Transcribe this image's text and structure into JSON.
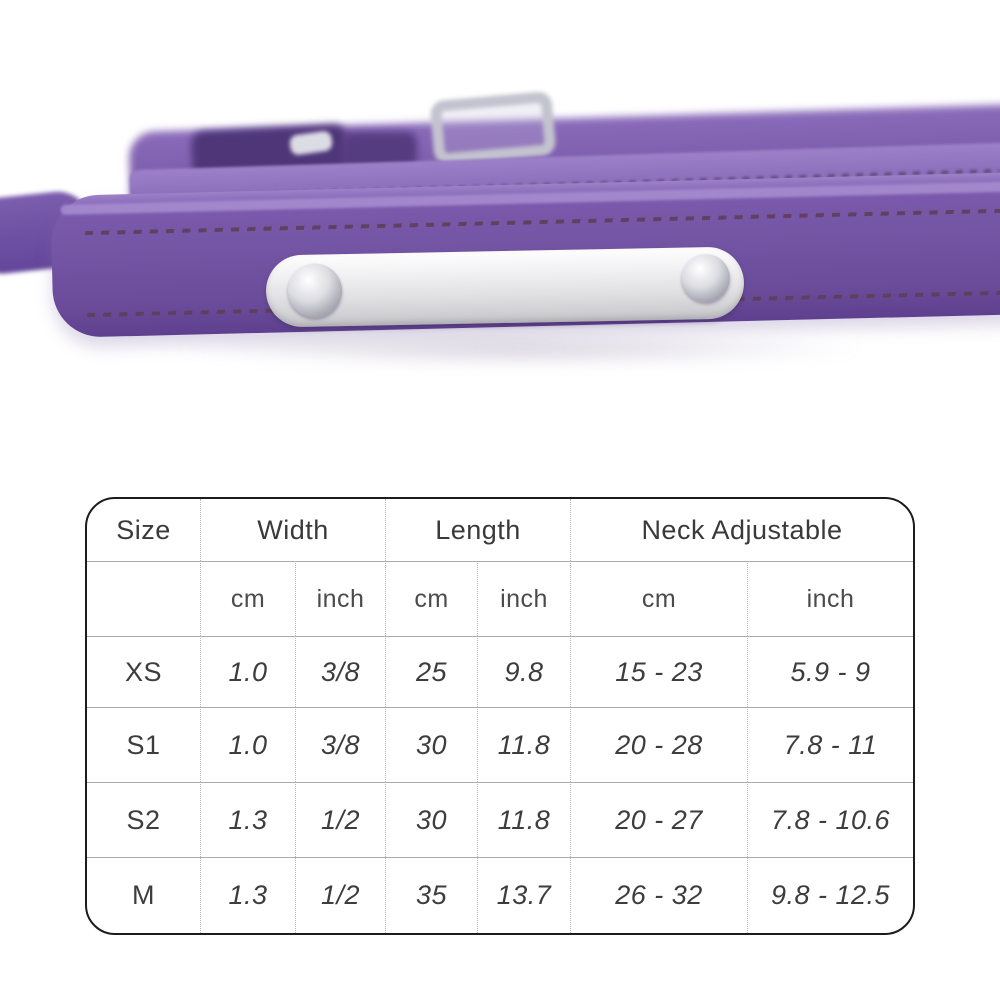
{
  "product_photo": {
    "alt": "Purple leather pet collar with blank stainless-steel nameplate, silver buckle, ball studs and adjustment holes",
    "colors": {
      "leather_main": "#7456a5",
      "leather_highlight": "#a98ed1",
      "leather_shadow": "#5e408f",
      "stitching": "#5d3f58",
      "nameplate": "#e8e8ea",
      "hardware_silver": "#c9c9d4"
    }
  },
  "size_table": {
    "headers": {
      "size": "Size",
      "width": "Width",
      "length": "Length",
      "neck": "Neck Adjustable"
    },
    "units": {
      "cm": "cm",
      "inch": "inch"
    },
    "rows": [
      {
        "size": "XS",
        "width_cm": "1.0",
        "width_inch": "3/8",
        "length_cm": "25",
        "length_inch": "9.8",
        "neck_cm": "15 - 23",
        "neck_inch": "5.9 - 9"
      },
      {
        "size": "S1",
        "width_cm": "1.0",
        "width_inch": "3/8",
        "length_cm": "30",
        "length_inch": "11.8",
        "neck_cm": "20 - 28",
        "neck_inch": "7.8 - 11"
      },
      {
        "size": "S2",
        "width_cm": "1.3",
        "width_inch": "1/2",
        "length_cm": "30",
        "length_inch": "11.8",
        "neck_cm": "20 - 27",
        "neck_inch": "7.8 - 10.6"
      },
      {
        "size": "M",
        "width_cm": "1.3",
        "width_inch": "1/2",
        "length_cm": "35",
        "length_inch": "13.7",
        "neck_cm": "26 - 32",
        "neck_inch": "9.8 - 12.5"
      }
    ]
  },
  "chart_data": {
    "type": "table",
    "title": "Pet collar size chart",
    "columns": [
      "Size",
      "Width cm",
      "Width inch",
      "Length cm",
      "Length inch",
      "Neck Adjustable cm",
      "Neck Adjustable inch"
    ],
    "rows": [
      [
        "XS",
        "1.0",
        "3/8",
        "25",
        "9.8",
        "15 - 23",
        "5.9 - 9"
      ],
      [
        "S1",
        "1.0",
        "3/8",
        "30",
        "11.8",
        "20 - 28",
        "7.8 - 11"
      ],
      [
        "S2",
        "1.3",
        "1/2",
        "30",
        "11.8",
        "20 - 27",
        "7.8 - 10.6"
      ],
      [
        "M",
        "1.3",
        "1/2",
        "35",
        "13.7",
        "26 - 32",
        "9.8 - 12.5"
      ]
    ]
  }
}
